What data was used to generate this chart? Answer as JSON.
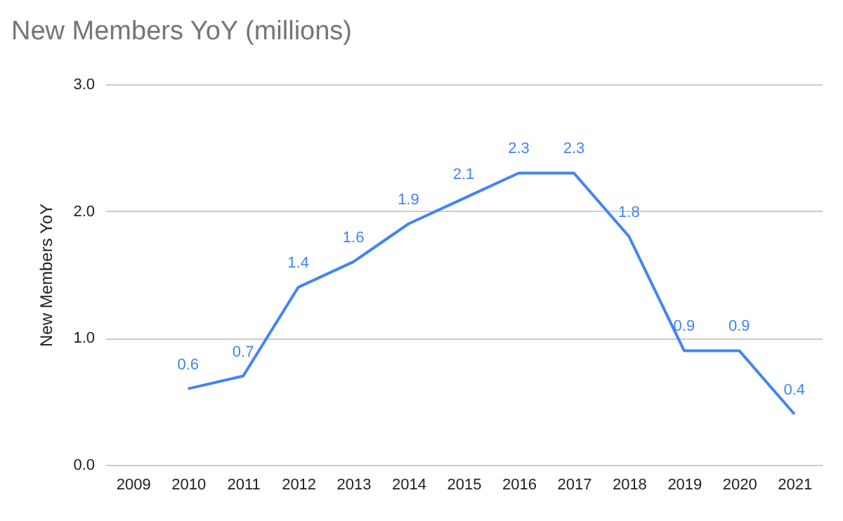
{
  "chart_data": {
    "type": "line",
    "title": "New Members YoY (millions)",
    "ylabel": "New Members YoY",
    "categories": [
      "2009",
      "2010",
      "2011",
      "2012",
      "2013",
      "2014",
      "2015",
      "2016",
      "2017",
      "2018",
      "2019",
      "2020",
      "2021"
    ],
    "series": [
      {
        "color": "#4285f4",
        "values": [
          null,
          0.6,
          0.7,
          1.4,
          1.6,
          1.9,
          2.1,
          2.3,
          2.3,
          1.8,
          0.9,
          0.9,
          0.4
        ]
      }
    ],
    "ylim": [
      0,
      3
    ],
    "yticks": [
      {
        "value": 0,
        "label": "0.0"
      },
      {
        "value": 1,
        "label": "1.0"
      },
      {
        "value": 2,
        "label": "2.0"
      },
      {
        "value": 3,
        "label": "3.0"
      }
    ],
    "grid": "y",
    "data_labels": true,
    "legend": false,
    "marker": "none",
    "line_style": "solid"
  }
}
